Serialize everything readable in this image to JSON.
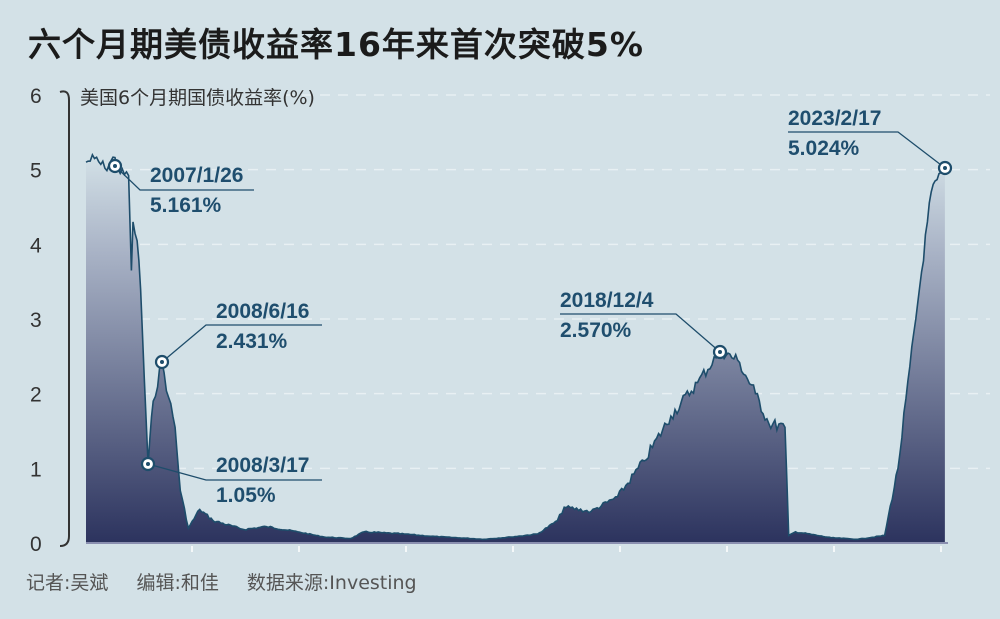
{
  "title": "六个月期美债收益率16年来首次突破5%",
  "footer": {
    "reporter": "记者:吴斌",
    "editor": "编辑:和佳",
    "source": "数据来源:Investing"
  },
  "chart_data": {
    "type": "area",
    "title": "六个月期美债收益率16年来首次突破5%",
    "ylabel": "美国6个月期国债收益率(%)",
    "xlabel": "",
    "ylim": [
      0,
      6
    ],
    "yticks": [
      "0",
      "1",
      "2",
      "3",
      "4",
      "5",
      "6"
    ],
    "grid": true,
    "colors": {
      "line": "#1e4d6b",
      "fill_bottom": "#2c335e",
      "fill_top": "#d3e1e7",
      "annotation": "#1f4e6e"
    },
    "series": [
      {
        "points": [
          [
            "2006-07-01",
            5.1
          ],
          [
            "2006-09-01",
            5.15
          ],
          [
            "2006-11-15",
            5.02
          ],
          [
            "2007-01-26",
            5.161
          ],
          [
            "2007-04-01",
            4.95
          ],
          [
            "2007-07-15",
            4.92
          ],
          [
            "2007-08-20",
            3.65
          ],
          [
            "2007-09-10",
            4.3
          ],
          [
            "2007-11-01",
            4.05
          ],
          [
            "2007-12-15",
            3.4
          ],
          [
            "2008-02-01",
            2.2
          ],
          [
            "2008-03-17",
            1.05
          ],
          [
            "2008-04-20",
            1.9
          ],
          [
            "2008-06-16",
            2.431
          ],
          [
            "2008-08-01",
            1.95
          ],
          [
            "2008-09-15",
            1.55
          ],
          [
            "2008-10-20",
            0.7
          ],
          [
            "2008-12-15",
            0.2
          ],
          [
            "2009-03-01",
            0.45
          ],
          [
            "2009-06-01",
            0.3
          ],
          [
            "2010-01-01",
            0.18
          ],
          [
            "2010-06-01",
            0.22
          ],
          [
            "2011-01-01",
            0.15
          ],
          [
            "2011-07-01",
            0.08
          ],
          [
            "2012-01-01",
            0.06
          ],
          [
            "2012-04-01",
            0.15
          ],
          [
            "2013-01-01",
            0.12
          ],
          [
            "2013-07-01",
            0.09
          ],
          [
            "2014-01-01",
            0.07
          ],
          [
            "2014-07-01",
            0.05
          ],
          [
            "2015-01-01",
            0.08
          ],
          [
            "2015-07-01",
            0.12
          ],
          [
            "2015-11-15",
            0.3
          ],
          [
            "2016-01-01",
            0.48
          ],
          [
            "2016-07-01",
            0.42
          ],
          [
            "2017-01-01",
            0.62
          ],
          [
            "2017-07-01",
            1.1
          ],
          [
            "2018-01-01",
            1.7
          ],
          [
            "2018-07-01",
            2.15
          ],
          [
            "2018-12-04",
            2.57
          ],
          [
            "2019-04-01",
            2.45
          ],
          [
            "2019-08-01",
            2.0
          ],
          [
            "2019-11-01",
            1.6
          ],
          [
            "2020-02-20",
            1.55
          ],
          [
            "2020-03-15",
            0.1
          ],
          [
            "2020-05-01",
            0.15
          ],
          [
            "2021-01-01",
            0.07
          ],
          [
            "2021-07-01",
            0.05
          ],
          [
            "2022-01-01",
            0.1
          ],
          [
            "2022-04-01",
            1.0
          ],
          [
            "2022-08-01",
            3.0
          ],
          [
            "2022-11-15",
            4.7
          ],
          [
            "2023-02-17",
            5.024
          ]
        ]
      }
    ],
    "annotations": [
      {
        "date": "2007/1/26",
        "value": "5.161%"
      },
      {
        "date": "2008/6/16",
        "value": "2.431%"
      },
      {
        "date": "2008/3/17",
        "value": "1.05%"
      },
      {
        "date": "2018/12/4",
        "value": "2.570%"
      },
      {
        "date": "2023/2/17",
        "value": "5.024%"
      }
    ]
  }
}
